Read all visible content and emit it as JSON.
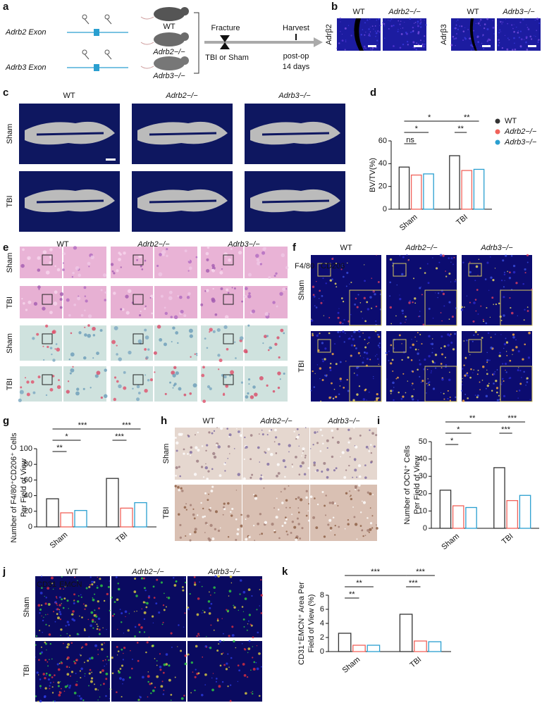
{
  "panel_letters": [
    "a",
    "b",
    "c",
    "d",
    "e",
    "f",
    "g",
    "h",
    "i",
    "j",
    "k"
  ],
  "genotypes": [
    "WT",
    "Adrb2−/−",
    "Adrb3−/−"
  ],
  "conditions": [
    "Sham",
    "TBI"
  ],
  "panel_a": {
    "exons": [
      "Adrb2 Exon",
      "Adrb3 Exon"
    ],
    "fracture": "Fracture",
    "tbi_or_sham": "TBI or Sham",
    "harvest": "Harvest",
    "post_op": "post-op",
    "days": "14 days"
  },
  "panel_b": {
    "stains": [
      "Adrβ2",
      "Adrβ3"
    ]
  },
  "panel_f": {
    "stains": [
      "F4/80",
      "CD206"
    ]
  },
  "panel_j": {
    "stains": [
      "CD31",
      "EMCN"
    ]
  },
  "chart_data": [
    {
      "type": "bar",
      "ylabel": [
        "BV/TV(%)"
      ],
      "categories": [
        "Sham",
        "TBI"
      ],
      "series": [
        {
          "name": "WT",
          "color": "#333333",
          "values": [
            37,
            47
          ]
        },
        {
          "name": "Adrb2−/−",
          "color": "#f0625a",
          "values": [
            30,
            34
          ]
        },
        {
          "name": "Adrb3−/−",
          "color": "#2a9fd0",
          "values": [
            31,
            35
          ]
        }
      ],
      "ylim": [
        0,
        60
      ],
      "yticks": [
        0,
        20,
        40,
        60
      ],
      "legend": "right",
      "significance": [
        "*",
        "**",
        "*",
        "**",
        "ns"
      ]
    },
    {
      "type": "bar",
      "ylabel": [
        "Number of F4/80⁺CD206⁺ Cells",
        "Per Field of View"
      ],
      "categories": [
        "Sham",
        "TBI"
      ],
      "series": [
        {
          "color": "#333333",
          "values": [
            36,
            62
          ]
        },
        {
          "color": "#f0625a",
          "values": [
            18,
            24
          ]
        },
        {
          "color": "#2a9fd0",
          "values": [
            21,
            31
          ]
        }
      ],
      "ylim": [
        0,
        100
      ],
      "yticks": [
        0,
        20,
        40,
        60,
        80,
        100
      ],
      "significance": [
        "***",
        "***",
        "*",
        "***",
        "**"
      ]
    },
    {
      "type": "bar",
      "ylabel": [
        "Number of OCN⁺ Cells",
        "Per Field of View"
      ],
      "categories": [
        "Sham",
        "TBI"
      ],
      "series": [
        {
          "color": "#333333",
          "values": [
            22,
            35
          ]
        },
        {
          "color": "#f0625a",
          "values": [
            13,
            16
          ]
        },
        {
          "color": "#2a9fd0",
          "values": [
            12,
            19
          ]
        }
      ],
      "ylim": [
        0,
        50
      ],
      "yticks": [
        0,
        10,
        20,
        30,
        40,
        50
      ],
      "significance": [
        "**",
        "***",
        "*",
        "***",
        "*"
      ]
    },
    {
      "type": "bar",
      "ylabel": [
        "CD31⁺EMCN⁺ Area Per",
        "Field of View (%)"
      ],
      "categories": [
        "Sham",
        "TBI"
      ],
      "series": [
        {
          "color": "#333333",
          "values": [
            2.6,
            5.3
          ]
        },
        {
          "color": "#f0625a",
          "values": [
            0.9,
            1.5
          ]
        },
        {
          "color": "#2a9fd0",
          "values": [
            0.9,
            1.4
          ]
        }
      ],
      "ylim": [
        0,
        8
      ],
      "yticks": [
        0,
        2,
        4,
        6,
        8
      ],
      "significance": [
        "***",
        "***",
        "**",
        "***",
        "**"
      ]
    }
  ]
}
